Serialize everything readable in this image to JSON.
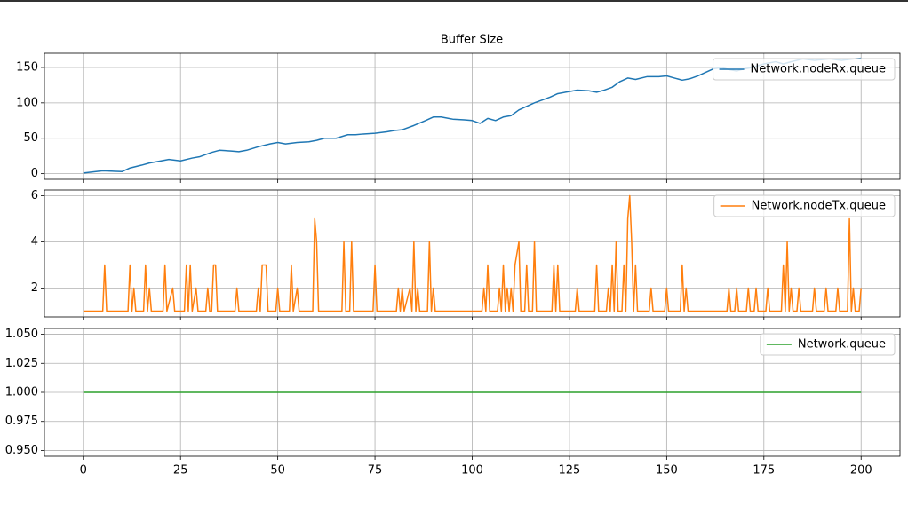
{
  "chart_data": [
    {
      "type": "line",
      "title": "Buffer Size",
      "grid": true,
      "legend": "upper right",
      "xlim": [
        -10,
        210
      ],
      "xticks": [
        0,
        25,
        50,
        75,
        100,
        125,
        150,
        175,
        200
      ],
      "ylim": [
        -8,
        170
      ],
      "yticks": [
        0,
        50,
        100,
        150
      ],
      "x": [
        0,
        5,
        10,
        12,
        15,
        17,
        20,
        22,
        25,
        28,
        30,
        33,
        35,
        38,
        40,
        42,
        45,
        48,
        50,
        52,
        55,
        58,
        60,
        62,
        65,
        68,
        70,
        72,
        75,
        78,
        80,
        82,
        85,
        88,
        90,
        92,
        95,
        98,
        100,
        102,
        104,
        106,
        108,
        110,
        112,
        114,
        116,
        118,
        120,
        122,
        125,
        127,
        130,
        132,
        134,
        136,
        138,
        140,
        142,
        145,
        148,
        150,
        152,
        154,
        156,
        158,
        160,
        162,
        164,
        166,
        168,
        170,
        172,
        175,
        178,
        180,
        182,
        185,
        188,
        190,
        192,
        195,
        198,
        200
      ],
      "series": [
        {
          "name": "Network.nodeRx.queue",
          "color": "#1f77b4",
          "values": [
            1,
            4,
            3,
            8,
            12,
            15,
            18,
            20,
            18,
            22,
            24,
            30,
            33,
            32,
            31,
            33,
            38,
            42,
            44,
            42,
            44,
            45,
            47,
            50,
            50,
            55,
            55,
            56,
            57,
            59,
            61,
            62,
            68,
            75,
            80,
            80,
            77,
            76,
            75,
            71,
            78,
            75,
            80,
            82,
            90,
            95,
            100,
            104,
            108,
            113,
            116,
            118,
            117,
            115,
            118,
            122,
            130,
            135,
            133,
            137,
            137,
            138,
            135,
            132,
            134,
            138,
            143,
            148,
            150,
            147,
            145,
            148,
            150,
            155,
            158,
            155,
            158,
            162,
            160,
            161,
            162,
            160,
            162,
            163
          ]
        }
      ]
    },
    {
      "type": "line",
      "grid": true,
      "legend": "upper right",
      "xlim": [
        -10,
        210
      ],
      "xticks": [
        0,
        25,
        50,
        75,
        100,
        125,
        150,
        175,
        200
      ],
      "ylim": [
        0.75,
        6.25
      ],
      "yticks": [
        2,
        4,
        6
      ],
      "x": [
        0,
        5,
        5.5,
        6,
        11.5,
        12,
        12.5,
        13,
        13.5,
        15.5,
        16,
        16.5,
        17,
        17.5,
        20.5,
        21,
        21.5,
        23,
        23.5,
        26,
        26.5,
        27,
        27.5,
        28,
        29,
        29.5,
        31.5,
        32,
        32.5,
        33,
        33.5,
        34,
        34.5,
        39,
        39.5,
        40,
        44.5,
        45,
        45.5,
        46,
        47,
        47.5,
        49.5,
        50,
        50.5,
        53,
        53.5,
        54,
        55,
        55.5,
        59,
        59.5,
        60,
        60.5,
        66.5,
        67,
        67.5,
        68.5,
        69,
        69.5,
        74.5,
        75,
        75.5,
        80.5,
        81,
        81.5,
        82,
        82.5,
        84,
        84.5,
        85,
        85.5,
        86,
        86.5,
        88.5,
        89,
        89.5,
        90,
        90.5,
        102.5,
        103,
        103.5,
        104,
        104.5,
        106.5,
        107,
        107.5,
        108,
        108.5,
        109,
        109.5,
        110,
        110.5,
        111,
        112,
        112.5,
        113.5,
        114,
        114.5,
        115.5,
        116,
        116.5,
        120.5,
        121,
        121.5,
        122,
        122.5,
        126.5,
        127,
        127.5,
        131.5,
        132,
        132.5,
        134.5,
        135,
        135.5,
        136,
        136.5,
        137,
        137.5,
        138.5,
        139,
        139.5,
        140,
        140.5,
        141,
        141.5,
        142,
        142.5,
        145.5,
        146,
        146.5,
        149.5,
        150,
        150.5,
        153.5,
        154,
        154.5,
        155,
        155.5,
        165.5,
        166,
        166.5,
        167.5,
        168,
        168.5,
        170.5,
        171,
        171.5,
        172.5,
        173,
        173.5,
        175.5,
        176,
        176.5,
        179.5,
        180,
        180.5,
        181,
        181.5,
        182,
        182.5,
        183.5,
        184,
        184.5,
        187.5,
        188,
        188.5,
        190.5,
        191,
        191.5,
        193.5,
        194,
        194.5,
        196.5,
        197,
        197.5,
        198,
        198.5,
        199.5,
        200
      ],
      "series": [
        {
          "name": "Network.nodeTx.queue",
          "color": "#ff7f0e",
          "values": [
            1,
            1,
            3,
            1,
            1,
            3,
            1,
            2,
            1,
            1,
            3,
            1,
            2,
            1,
            1,
            3,
            1,
            2,
            1,
            1,
            3,
            1,
            3,
            1,
            2,
            1,
            1,
            2,
            1,
            1,
            3,
            3,
            1,
            1,
            2,
            1,
            1,
            2,
            1,
            3,
            3,
            1,
            1,
            2,
            1,
            1,
            3,
            1,
            2,
            1,
            1,
            5,
            4,
            1,
            1,
            4,
            1,
            1,
            4,
            1,
            1,
            3,
            1,
            1,
            2,
            1,
            2,
            1,
            2,
            1,
            4,
            1,
            2,
            1,
            1,
            4,
            1,
            2,
            1,
            1,
            2,
            1,
            3,
            1,
            1,
            2,
            1,
            3,
            1,
            2,
            1,
            2,
            1,
            3,
            4,
            1,
            1,
            3,
            1,
            1,
            4,
            1,
            1,
            3,
            1,
            3,
            1,
            1,
            2,
            1,
            1,
            3,
            1,
            1,
            2,
            1,
            3,
            1,
            4,
            1,
            1,
            3,
            1,
            5,
            6,
            4,
            1,
            3,
            1,
            1,
            2,
            1,
            1,
            2,
            1,
            1,
            3,
            1,
            2,
            1,
            1,
            2,
            1,
            1,
            2,
            1,
            1,
            2,
            1,
            1,
            2,
            1,
            1,
            2,
            1,
            1,
            3,
            1,
            4,
            1,
            2,
            1,
            1,
            2,
            1,
            1,
            2,
            1,
            1,
            2,
            1,
            1,
            2,
            1,
            1,
            5,
            1,
            2,
            1,
            1,
            2
          ]
        }
      ]
    },
    {
      "type": "line",
      "grid": true,
      "legend": "upper right",
      "xlim": [
        -10,
        210
      ],
      "xticks": [
        0,
        25,
        50,
        75,
        100,
        125,
        150,
        175,
        200
      ],
      "ylim": [
        0.945,
        1.055
      ],
      "yticks": [
        {
          "value": 0.95,
          "label": "0.950"
        },
        {
          "value": 0.975,
          "label": "0.975"
        },
        {
          "value": 1,
          "label": "1.000"
        },
        {
          "value": 1.025,
          "label": "1.025"
        },
        {
          "value": 1.05,
          "label": "1.050"
        }
      ],
      "x": [
        0,
        200
      ],
      "series": [
        {
          "name": "Network.queue",
          "color": "#2ca02c",
          "values": [
            1,
            1
          ]
        }
      ]
    }
  ]
}
